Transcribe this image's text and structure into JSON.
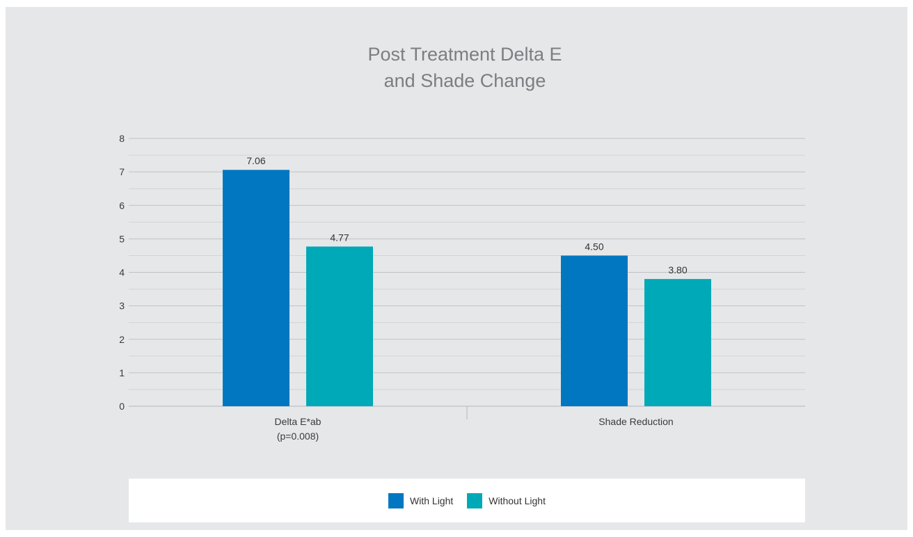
{
  "chart_data": {
    "type": "bar",
    "title_lines": [
      "Post Treatment Delta E",
      "and Shade Change"
    ],
    "categories": [
      {
        "lines": [
          "Delta E*ab",
          "(p=0.008)"
        ]
      },
      {
        "lines": [
          "Shade Reduction"
        ]
      }
    ],
    "series": [
      {
        "name": "With Light",
        "color": "#0077c0",
        "values": [
          7.06,
          4.5
        ],
        "labels": [
          "7.06",
          "4.50"
        ]
      },
      {
        "name": "Without Light",
        "color": "#00a9b7",
        "values": [
          4.77,
          3.8
        ],
        "labels": [
          "4.77",
          "3.80"
        ]
      }
    ],
    "yticks": [
      "0",
      "1",
      "2",
      "3",
      "4",
      "5",
      "6",
      "7",
      "8"
    ],
    "ylim": [
      0,
      8
    ],
    "minor_gridlines": true,
    "legend_position": "bottom"
  }
}
